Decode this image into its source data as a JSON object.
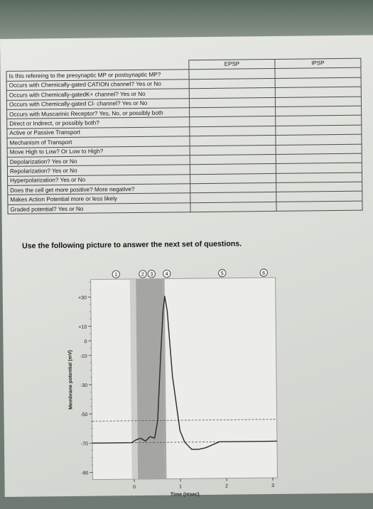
{
  "table": {
    "headers": {
      "question": "",
      "epsp": "EPSP",
      "ipsp": "IPSP"
    },
    "rows": [
      "Is this refereing to the presynaptic MP or postsynaptic MP?",
      "Occurs with Chemically-gated CATION channel? Yes or No",
      "Occurs with Chemically-gatedK+ channel? Yes or No",
      "Occurs with Chemically-gated Cl- channel? Yes or No",
      "Occurs with Muscarinic Receptor? Yes, No, or possibly both",
      "Direct or Indirect, or possibly both?",
      "Active or Passive Transport",
      "Mechanism of Transport",
      "Move High to Low? Or Low to High?",
      "Depolarization? Yes or No",
      "Repolarization? Yes or No",
      "Hyperpolarization? Yes or No",
      "Does the cell get more positive? More negative?",
      "Makes Action Potential more or less likely",
      "Graded potential? Yes or No"
    ]
  },
  "instruction": "Use the following picture to answer the next set of questions.",
  "chart_data": {
    "type": "line",
    "xlabel": "Time (msec)",
    "ylabel": "Membrane potential (mV)",
    "xlim": [
      -0.9,
      3.1
    ],
    "ylim": [
      -95,
      42
    ],
    "x_ticks": [
      "0",
      "1",
      "2",
      "3"
    ],
    "y_ticks": [
      "+30",
      "+10",
      "0",
      "-10",
      "-30",
      "-50",
      "-70",
      "-90"
    ],
    "threshold_mV": -55,
    "resting_mV": -70,
    "phase_markers": [
      "1",
      "2",
      "3",
      "4",
      "5",
      "6"
    ],
    "series": [
      {
        "x": [
          -0.9,
          -0.35,
          -0.05,
          0.05,
          0.15,
          0.25,
          0.35,
          0.45,
          0.52,
          0.6,
          0.66,
          0.7,
          0.75,
          0.85,
          1.0,
          1.1,
          1.25,
          1.4,
          1.55,
          1.7,
          1.85,
          2.0,
          3.1
        ],
        "y": [
          -70,
          -70,
          -70,
          -68,
          -67,
          -69,
          -66,
          -67,
          -55,
          -10,
          20,
          30,
          20,
          -25,
          -62,
          -70,
          -75,
          -75,
          -74,
          -72,
          -70,
          -70,
          -70
        ]
      }
    ],
    "shaded_regions": [
      {
        "from": -0.05,
        "to": 0.65,
        "shade": "light"
      },
      {
        "from": 0.08,
        "to": 0.7,
        "shade": "dark"
      }
    ]
  }
}
